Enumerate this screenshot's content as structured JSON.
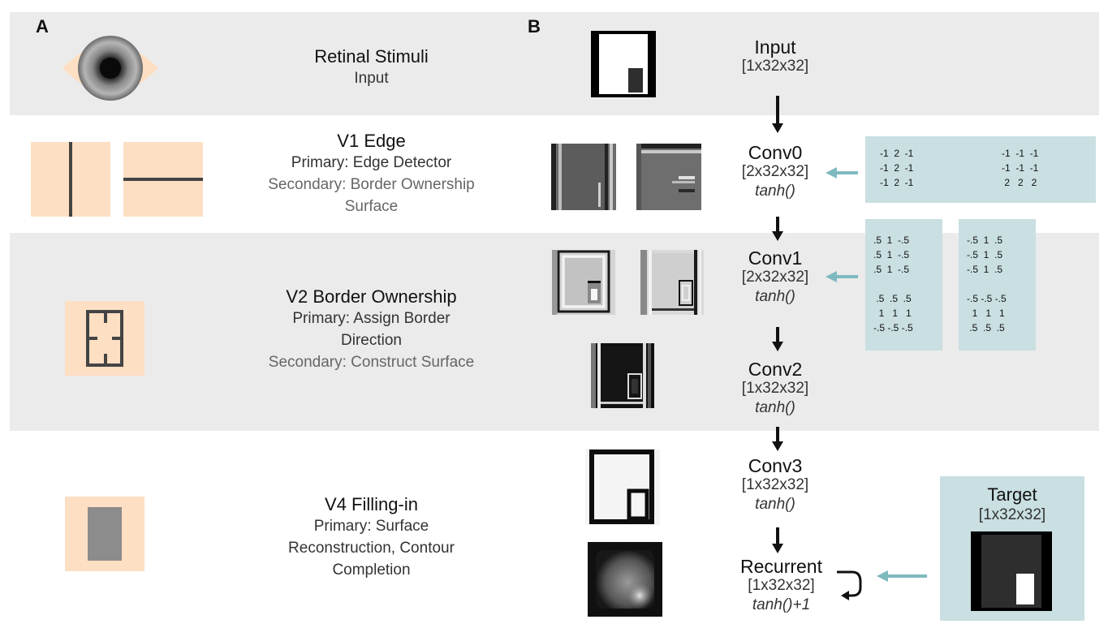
{
  "panel_labels": {
    "a": "A",
    "b": "B"
  },
  "areas": {
    "retinal": {
      "title": "Retinal Stimuli",
      "line1": "Input"
    },
    "v1": {
      "title": "V1 Edge",
      "primary": "Primary: Edge Detector",
      "secondary1": "Secondary: Border Ownership",
      "secondary2": "Surface"
    },
    "v2": {
      "title": "V2 Border Ownership",
      "primary1": "Primary: Assign Border",
      "primary2": "Direction",
      "secondary": "Secondary: Construct Surface"
    },
    "v4": {
      "title": "V4 Filling-in",
      "primary1": "Primary: Surface",
      "primary2": "Reconstruction, Contour",
      "primary3": "Completion"
    }
  },
  "network": {
    "input": {
      "name": "Input",
      "shape": "[1x32x32]"
    },
    "conv0": {
      "name": "Conv0",
      "shape": "[2x32x32]",
      "act": "tanh()"
    },
    "conv1": {
      "name": "Conv1",
      "shape": "[2x32x32]",
      "act": "tanh()"
    },
    "conv2": {
      "name": "Conv2",
      "shape": "[1x32x32]",
      "act": "tanh()"
    },
    "conv3": {
      "name": "Conv3",
      "shape": "[1x32x32]",
      "act": "tanh()"
    },
    "recurrent": {
      "name": "Recurrent",
      "shape": "[1x32x32]",
      "act": "tanh()+1"
    },
    "target": {
      "name": "Target",
      "shape": "[1x32x32]"
    }
  },
  "kernels": {
    "conv0_a": "-1  2  -1\n-1  2  -1\n-1  2  -1",
    "conv0_b": "-1  -1  -1\n-1  -1  -1\n 2   2   2",
    "conv1_a": ".5  1  -.5\n.5  1  -.5\n.5  1  -.5\n\n .5  .5  .5\n  1   1   1\n-.5 -.5 -.5",
    "conv1_b": "-.5  1  .5\n-.5  1  .5\n-.5  1  .5\n\n-.5 -.5 -.5\n  1   1   1\n .5  .5  .5"
  },
  "colors": {
    "gray_band": "#ebebeb",
    "peach": "#fddfc3",
    "kernel_panel": "#c9dfe1",
    "teal_arrow": "#7fb9c0"
  }
}
